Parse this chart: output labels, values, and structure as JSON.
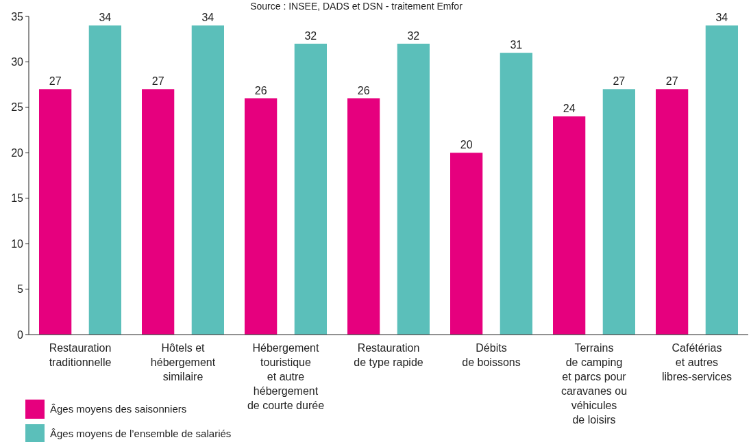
{
  "chart_data": {
    "type": "bar",
    "annotations": [
      "Source : INSEE, DADS et DSN - traitement Emfor"
    ],
    "categories": [
      "Restauration\ntraditionnelle",
      "Hôtels et\nhébergement\nsimilaire",
      "Hébergement\ntouristique\net autre\nhébergement\nde courte durée",
      "Restauration\nde type rapide",
      "Débits\nde boissons",
      "Terrains\nde camping\net parcs pour\ncaravanes ou\nvéhicules\nde loisirs",
      "Cafétérias\net autres\nlibres-services"
    ],
    "series": [
      {
        "name": "Âges moyens des saisonniers",
        "color": "#e6007e",
        "values": [
          27,
          27,
          26,
          26,
          20,
          24,
          27
        ]
      },
      {
        "name": "Âges moyens de l’ensemble de salariés",
        "color": "#5bbfba",
        "values": [
          34,
          34,
          32,
          32,
          31,
          27,
          34
        ]
      }
    ],
    "ylim": [
      0,
      35
    ],
    "yticks": [
      0,
      5,
      10,
      15,
      20,
      25,
      30,
      35
    ],
    "grid": false,
    "legend": "bottom left",
    "data_labels": true
  }
}
